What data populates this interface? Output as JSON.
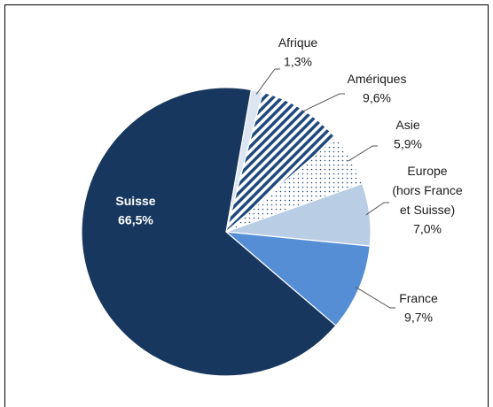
{
  "chart_data": {
    "type": "pie",
    "categories": [
      "Afrique",
      "Amériques",
      "Asie",
      "Europe\n(hors France\net Suisse)",
      "France",
      "Suisse"
    ],
    "values": [
      1.3,
      9.6,
      5.9,
      7.0,
      9.7,
      66.5
    ],
    "value_labels": [
      "1,3%",
      "9,6%",
      "5,9%",
      "7,0%",
      "9,7%",
      "66,5%"
    ],
    "colors": [
      "#dce6f2",
      "#1f497d",
      "#1f497d",
      "#b9cde5",
      "#558ed5",
      "#17375e"
    ],
    "patterns": [
      "solid",
      "hatch",
      "dots",
      "solid",
      "solid",
      "solid"
    ]
  }
}
